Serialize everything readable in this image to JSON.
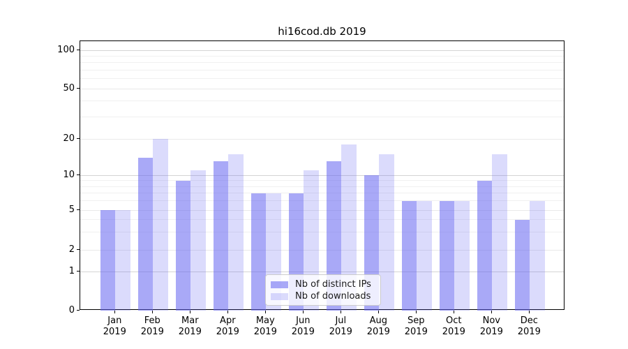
{
  "title": "hi16cod.db 2019",
  "chart_data": {
    "type": "bar",
    "title": "hi16cod.db 2019",
    "x_months": [
      "Jan",
      "Feb",
      "Mar",
      "Apr",
      "May",
      "Jun",
      "Jul",
      "Aug",
      "Sep",
      "Oct",
      "Nov",
      "Dec"
    ],
    "x_year": "2019",
    "series": [
      {
        "name": "Nb of distinct IPs",
        "color": "rgba(98,98,240,0.55)",
        "values": [
          5,
          14,
          9,
          13,
          7,
          7,
          13,
          10,
          6,
          6,
          9,
          4
        ]
      },
      {
        "name": "Nb of downloads",
        "color": "rgba(98,98,240,0.23)",
        "values": [
          5,
          20,
          11,
          15,
          7,
          11,
          18,
          15,
          6,
          6,
          15,
          6
        ]
      }
    ],
    "yscale": "symlog",
    "yticks": [
      0,
      1,
      2,
      5,
      10,
      20,
      50,
      100
    ],
    "major_gridlines": [
      1,
      10,
      100
    ],
    "mid_gridlines": [
      2,
      5,
      20,
      50
    ],
    "minor_gridlines": [
      3,
      4,
      6,
      7,
      8,
      9,
      30,
      40,
      60,
      70,
      80,
      90
    ],
    "ylim": [
      0,
      110
    ],
    "grid": true,
    "legend": {
      "position": "lower center"
    },
    "xlabel": "",
    "ylabel": ""
  }
}
